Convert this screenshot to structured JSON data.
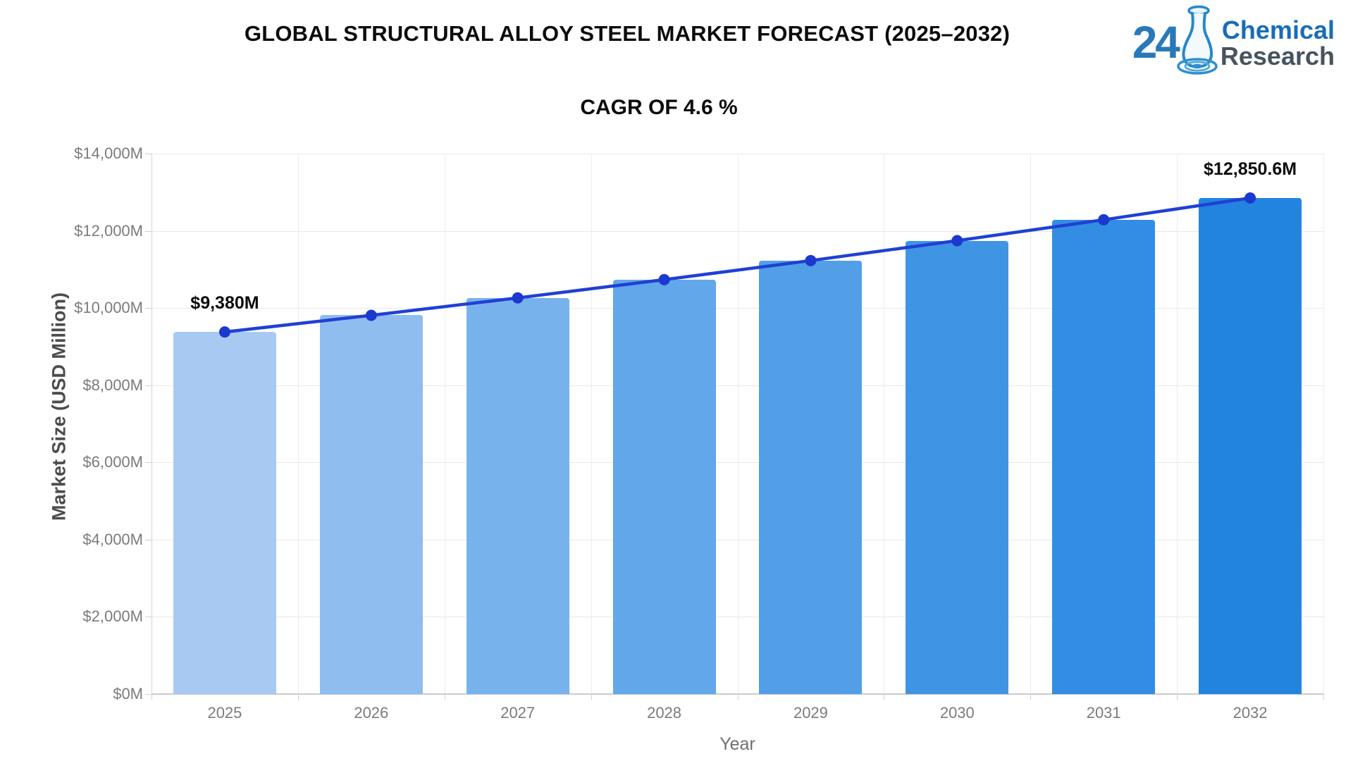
{
  "header": {
    "title": "GLOBAL STRUCTURAL ALLOY STEEL MARKET FORECAST (2025–2032)",
    "logo": {
      "number": "24",
      "line1": "Chemical",
      "line2": "Research"
    }
  },
  "chart_data": {
    "type": "bar",
    "title": "CAGR OF 4.6 %",
    "xlabel": "Year",
    "ylabel": "Market Size (USD Million)",
    "categories": [
      "2025",
      "2026",
      "2027",
      "2028",
      "2029",
      "2030",
      "2031",
      "2032"
    ],
    "series": [
      {
        "name": "Market Size bars",
        "type": "bar",
        "values": [
          9380,
          9811.5,
          10262.8,
          10734.9,
          11228.7,
          11745.2,
          12285.5,
          12850.6
        ]
      },
      {
        "name": "Market Size trend line",
        "type": "line",
        "values": [
          9380,
          9811.5,
          10262.8,
          10734.9,
          11228.7,
          11745.2,
          12285.5,
          12850.6
        ]
      }
    ],
    "point_labels": [
      "$9,380M",
      "",
      "",
      "",
      "",
      "",
      "",
      "$12,850.6M"
    ],
    "cagr_percent": 4.6,
    "ylim": [
      0,
      14000
    ],
    "yticks": [
      0,
      2000,
      4000,
      6000,
      8000,
      10000,
      12000,
      14000
    ],
    "ytick_labels": [
      "$0M",
      "$2,000M",
      "$4,000M",
      "$6,000M",
      "$8,000M",
      "$10,000M",
      "$12,000M",
      "$14,000M"
    ],
    "grid": true,
    "legend": "none",
    "bar_colors": [
      "#a8c9f2",
      "#8fbdef",
      "#78b2ec",
      "#62a7e9",
      "#539fe7",
      "#3f95e4",
      "#338ee3",
      "#2384e0"
    ],
    "line_color": "#2040d4",
    "marker_color": "#1b38cf",
    "grid_color": "#e8e8e8",
    "axis_color": "#cbcbcb",
    "tick_text_color": "#7b7b7b"
  }
}
